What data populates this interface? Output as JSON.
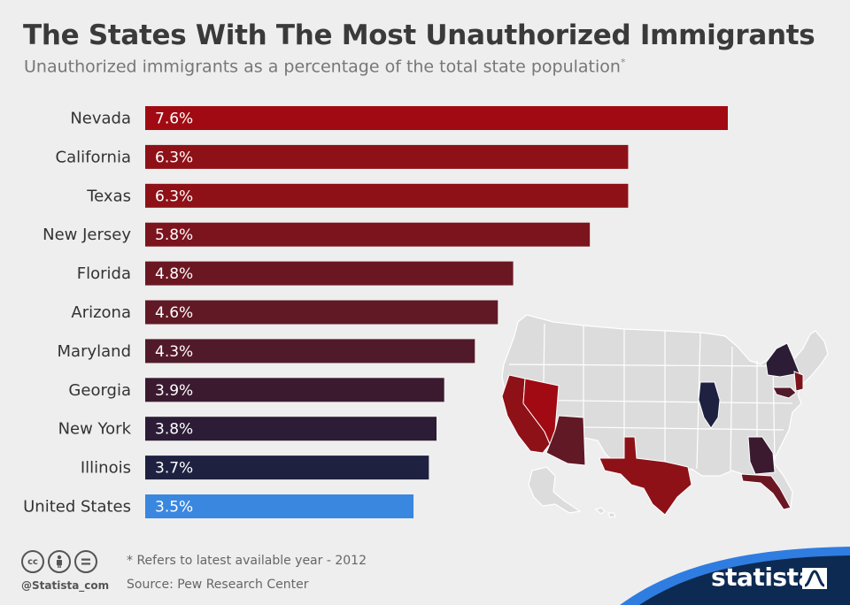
{
  "header": {
    "title": "The States With The Most Unauthorized Immigrants",
    "subtitle": "Unauthorized immigrants as a percentage of the total state population",
    "subtitle_marker": "*"
  },
  "chart_data": {
    "type": "bar",
    "orientation": "horizontal",
    "title": "The States With The Most Unauthorized Immigrants",
    "subtitle": "Unauthorized immigrants as a percentage of the total state population",
    "categories": [
      "Nevada",
      "California",
      "Texas",
      "New Jersey",
      "Florida",
      "Arizona",
      "Maryland",
      "Georgia",
      "New York",
      "Illinois",
      "United States"
    ],
    "values": [
      7.6,
      6.3,
      6.3,
      5.8,
      4.8,
      4.6,
      4.3,
      3.9,
      3.8,
      3.7,
      3.5
    ],
    "value_labels": [
      "7.6%",
      "6.3%",
      "6.3%",
      "5.8%",
      "4.8%",
      "4.6%",
      "4.3%",
      "3.9%",
      "3.8%",
      "3.7%",
      "3.5%"
    ],
    "bar_colors": [
      "#a10a12",
      "#8e1118",
      "#8e1118",
      "#7c141d",
      "#6b1722",
      "#601925",
      "#511a2a",
      "#3b1a30",
      "#2c1c36",
      "#1e2140",
      "#3a87e0"
    ],
    "xlim": [
      0,
      8
    ],
    "unit": "%",
    "grid": false,
    "legend": "none"
  },
  "map": {
    "base_color": "#dcdcdc",
    "highlight_colors": {
      "Nevada": "#a10a12",
      "California": "#8e1118",
      "Texas": "#8e1118",
      "New Jersey": "#7c141d",
      "Florida": "#6b1722",
      "Arizona": "#601925",
      "Maryland": "#511a2a",
      "Georgia": "#3b1a30",
      "New York": "#2c1c36",
      "Illinois": "#1e2140"
    }
  },
  "footer": {
    "note": "* Refers to latest available year - 2012",
    "source": "Source: Pew Research Center",
    "handle": "@Statista_com",
    "license_icons": [
      "cc-icon",
      "attribution-icon",
      "no-derivatives-icon"
    ],
    "brand": "statista"
  },
  "colors": {
    "background": "#eeeeee",
    "brand_navy": "#0d2a52",
    "brand_blue": "#2f7de1"
  }
}
